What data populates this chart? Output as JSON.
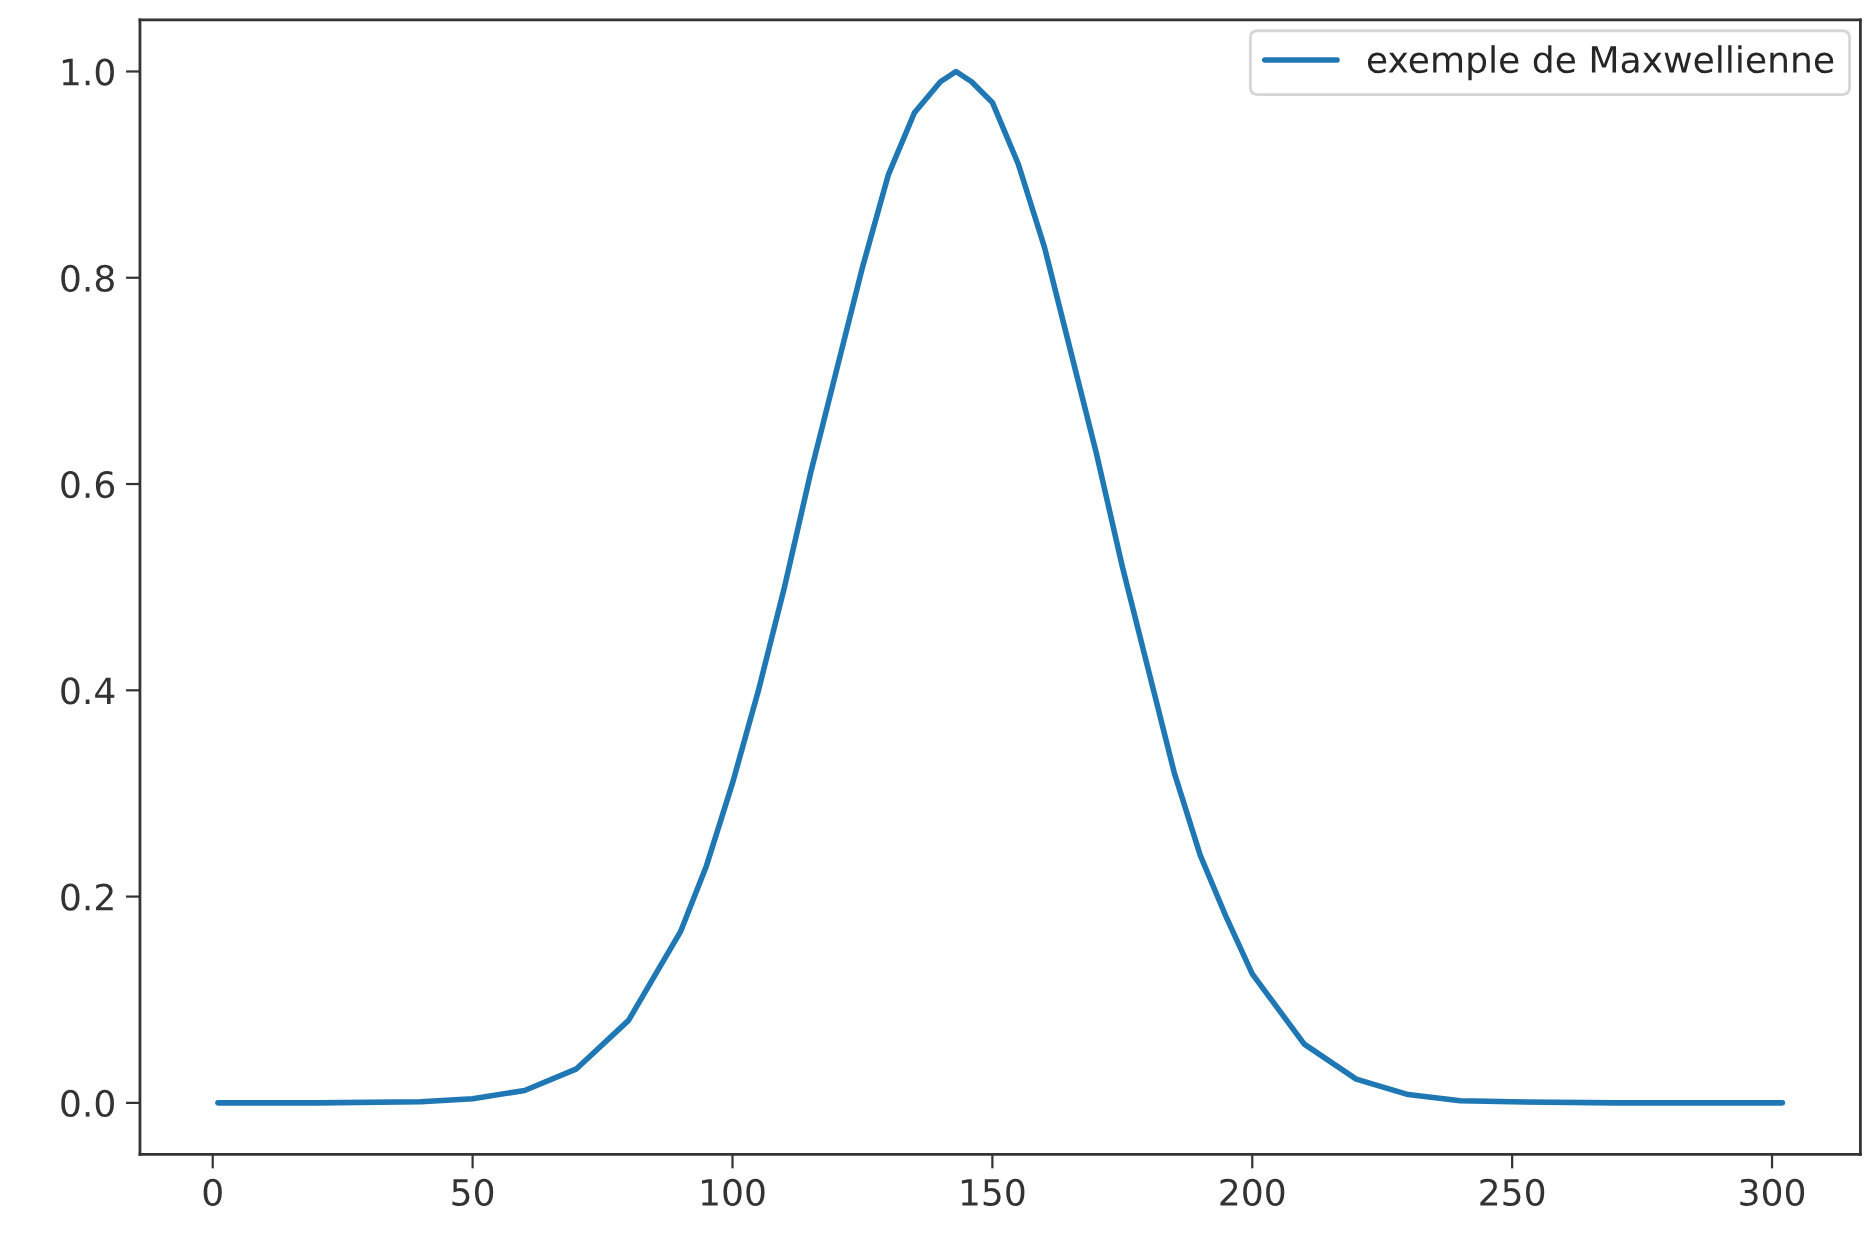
{
  "chart_data": {
    "type": "line",
    "x": [
      1,
      20,
      40,
      50,
      60,
      70,
      80,
      90,
      95,
      100,
      105,
      110,
      115,
      120,
      125,
      130,
      135,
      140,
      143,
      146,
      150,
      155,
      160,
      165,
      170,
      175,
      180,
      185,
      190,
      195,
      200,
      210,
      220,
      230,
      240,
      250,
      270,
      302
    ],
    "series": [
      {
        "name": "exemple de Maxwellienne",
        "color": "#1f77b4",
        "values": [
          0,
          0,
          0.001,
          0.004,
          0.012,
          0.033,
          0.08,
          0.166,
          0.23,
          0.31,
          0.4,
          0.5,
          0.61,
          0.71,
          0.81,
          0.9,
          0.96,
          0.99,
          1.0,
          0.99,
          0.97,
          0.91,
          0.83,
          0.73,
          0.63,
          0.52,
          0.42,
          0.32,
          0.24,
          0.18,
          0.125,
          0.057,
          0.023,
          0.008,
          0.002,
          0.001,
          0,
          0
        ]
      }
    ],
    "xlim": [
      -14,
      317
    ],
    "ylim": [
      -0.05,
      1.05
    ],
    "xticks": [
      0,
      50,
      100,
      150,
      200,
      250,
      300
    ],
    "yticks": [
      {
        "value": 0,
        "label": "0.0"
      },
      {
        "value": 0.2,
        "label": "0.2"
      },
      {
        "value": 0.4,
        "label": "0.4"
      },
      {
        "value": 0.6,
        "label": "0.6"
      },
      {
        "value": 0.8,
        "label": "0.8"
      },
      {
        "value": 1,
        "label": "1.0"
      }
    ],
    "legend": "top right",
    "grid": false,
    "line_style": "solid",
    "marker": "none"
  }
}
